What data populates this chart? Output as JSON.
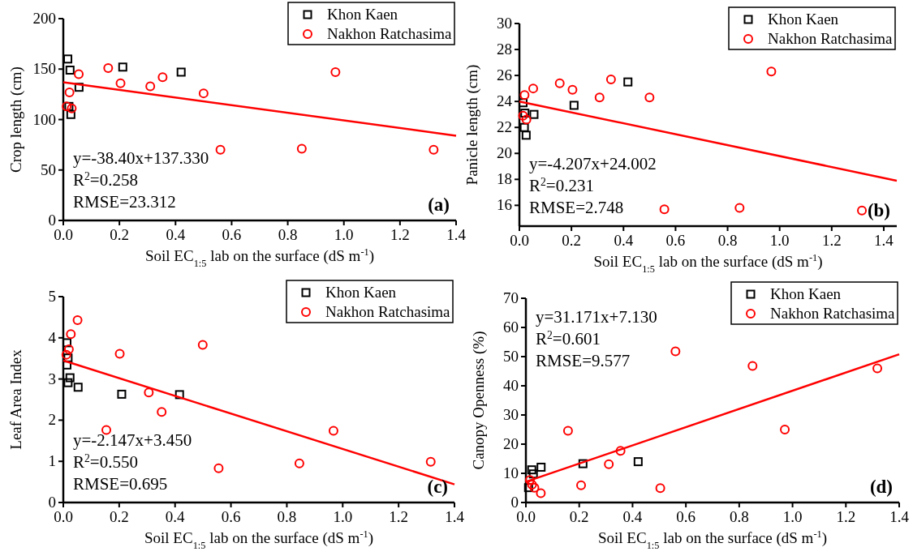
{
  "chart_data": [
    {
      "type": "scatter",
      "ylabel": "Crop length (cm)",
      "xlabel": "Soil EC$_{1:5}$ lab on the surface (dS m$^{-1}$)",
      "xlim": [
        0,
        1.4
      ],
      "xticks": [
        {
          "value": 0,
          "label": "0.0"
        },
        {
          "value": 0.2,
          "label": "0.2"
        },
        {
          "value": 0.4,
          "label": "0.4"
        },
        {
          "value": 0.6,
          "label": "0.6"
        },
        {
          "value": 0.8,
          "label": "0.8"
        },
        {
          "value": 1,
          "label": "1.0"
        },
        {
          "value": 1.2,
          "label": "1.2"
        },
        {
          "value": 1.4,
          "label": "1.4"
        }
      ],
      "ylim": [
        0,
        200
      ],
      "yticks": [
        0,
        50,
        100,
        150,
        200
      ],
      "legend": "top right",
      "grid": false,
      "annotations": [
        "y=-38.40x+137.330",
        "R$^{2}$=0.258",
        "RMSE=23.312",
        "(a)"
      ],
      "series": [
        {
          "name": "Khon Kaen",
          "color": "#000000",
          "marker": "square",
          "x": [
            0.016,
            0.024,
            0.056,
            0.027,
            0.02,
            0.212,
            0.42
          ],
          "values": [
            160,
            149,
            132,
            105,
            113,
            152,
            147
          ]
        },
        {
          "name": "Nakhon Ratchasima",
          "color": "#ff0000",
          "marker": "circle",
          "x": [
            0.16,
            0.055,
            0.022,
            0.012,
            0.03,
            0.204,
            0.31,
            0.354,
            0.5,
            0.56,
            0.85,
            0.97,
            1.32
          ],
          "values": [
            151,
            145,
            127,
            113,
            111,
            136,
            133,
            142,
            126,
            70,
            71,
            147,
            70
          ]
        },
        {
          "type": "line",
          "color": "#ff0000",
          "marker": "none",
          "line_style": "solid",
          "x": [
            0,
            1.4
          ],
          "values": [
            137,
            84
          ]
        }
      ]
    },
    {
      "type": "scatter",
      "ylabel": "Panicle length (cm)",
      "xlabel": "Soil EC$_{1:5}$ lab on the surface (dS m$^{-1}$)",
      "xlim": [
        0,
        1.45
      ],
      "xticks": [
        {
          "value": 0,
          "label": "0.0"
        },
        {
          "value": 0.2,
          "label": "0.2"
        },
        {
          "value": 0.4,
          "label": "0.4"
        },
        {
          "value": 0.6,
          "label": "0.6"
        },
        {
          "value": 0.8,
          "label": "0.8"
        },
        {
          "value": 1,
          "label": "1.0"
        },
        {
          "value": 1.2,
          "label": "1.2"
        },
        {
          "value": 1.4,
          "label": "1.4"
        }
      ],
      "ylim": [
        14.4,
        30
      ],
      "yticks": [
        16,
        18,
        20,
        22,
        24,
        26,
        28,
        30
      ],
      "legend": "top right",
      "grid": false,
      "annotations": [
        "y=-4.207x+24.002",
        "R$^{2}$=0.231",
        "RMSE=2.748",
        "(b)"
      ],
      "series": [
        {
          "name": "Khon Kaen",
          "color": "#000000",
          "marker": "square",
          "x": [
            0.014,
            0.021,
            0.019,
            0.026,
            0.056,
            0.21,
            0.417
          ],
          "values": [
            23.9,
            23.1,
            22.0,
            21.4,
            23.0,
            23.7,
            25.5
          ]
        },
        {
          "name": "Nakhon Ratchasima",
          "color": "#ff0000",
          "marker": "circle",
          "x": [
            0.02,
            0.053,
            0.014,
            0.027,
            0.155,
            0.204,
            0.308,
            0.352,
            0.5,
            0.557,
            0.846,
            0.968,
            1.316
          ],
          "values": [
            24.5,
            25.0,
            22.9,
            22.6,
            25.4,
            24.9,
            24.3,
            25.7,
            24.3,
            15.7,
            15.8,
            26.3,
            15.6
          ]
        },
        {
          "type": "line",
          "color": "#ff0000",
          "marker": "none",
          "line_style": "solid",
          "x": [
            0,
            1.45
          ],
          "values": [
            24.0,
            17.9
          ]
        }
      ]
    },
    {
      "type": "scatter",
      "ylabel": "Leaf Area Index",
      "xlabel": "Soil EC$_{1:5}$ lab on the surface (dS m$^{-1}$)",
      "xlim": [
        0,
        1.4
      ],
      "xticks": [
        {
          "value": 0,
          "label": "0.0"
        },
        {
          "value": 0.2,
          "label": "0.2"
        },
        {
          "value": 0.4,
          "label": "0.4"
        },
        {
          "value": 0.6,
          "label": "0.6"
        },
        {
          "value": 0.8,
          "label": "0.8"
        },
        {
          "value": 1,
          "label": "1.0"
        },
        {
          "value": 1.2,
          "label": "1.2"
        },
        {
          "value": 1.4,
          "label": "1.4"
        }
      ],
      "ylim": [
        0,
        5
      ],
      "yticks": [
        0,
        1,
        2,
        3,
        4,
        5
      ],
      "legend": "top right",
      "grid": false,
      "annotations": [
        "y=-2.147x+3.450",
        "R$^{2}$=0.550",
        "RMSE=0.695",
        "(c)"
      ],
      "series": [
        {
          "name": "Khon Kaen",
          "color": "#000000",
          "marker": "square",
          "x": [
            0.013,
            0.017,
            0.013,
            0.024,
            0.017,
            0.053,
            0.209,
            0.416
          ],
          "values": [
            3.88,
            3.51,
            3.34,
            3.03,
            2.91,
            2.8,
            2.63,
            2.62
          ]
        },
        {
          "name": "Nakhon Ratchasima",
          "color": "#ff0000",
          "marker": "circle",
          "x": [
            0.051,
            0.027,
            0.02,
            0.011,
            0.154,
            0.202,
            0.306,
            0.352,
            0.499,
            0.556,
            0.845,
            0.967,
            1.315
          ],
          "values": [
            4.43,
            4.09,
            3.72,
            3.59,
            1.76,
            3.61,
            2.67,
            2.2,
            3.83,
            0.83,
            0.95,
            1.74,
            0.99
          ]
        },
        {
          "type": "line",
          "color": "#ff0000",
          "marker": "none",
          "line_style": "solid",
          "x": [
            0,
            1.4
          ],
          "values": [
            3.45,
            0.44
          ]
        }
      ]
    },
    {
      "type": "scatter",
      "ylabel": "Canopy Openness (%)",
      "xlabel": "Soil EC$_{1:5}$ lab on the surface (dS m$^{-1}$)",
      "xlim": [
        0,
        1.4
      ],
      "xticks": [
        {
          "value": 0,
          "label": "0.0"
        },
        {
          "value": 0.2,
          "label": "0.2"
        },
        {
          "value": 0.4,
          "label": "0.4"
        },
        {
          "value": 0.6,
          "label": "0.6"
        },
        {
          "value": 0.8,
          "label": "0.8"
        },
        {
          "value": 1,
          "label": "1.0"
        },
        {
          "value": 1.2,
          "label": "1.2"
        },
        {
          "value": 1.4,
          "label": "1.4"
        }
      ],
      "ylim": [
        0,
        70
      ],
      "yticks": [
        0,
        10,
        20,
        30,
        40,
        50,
        60,
        70
      ],
      "legend": "top right",
      "grid": false,
      "annotations": [
        "y=31.171x+7.130",
        "R$^{2}$=0.601",
        "RMSE=9.577",
        "(d)"
      ],
      "series": [
        {
          "name": "Khon Kaen",
          "color": "#000000",
          "marker": "square",
          "x": [
            0.022,
            0.028,
            0.057,
            0.214,
            0.421,
            0.01
          ],
          "values": [
            11.2,
            9.8,
            12.1,
            13.3,
            14.0,
            5.1
          ]
        },
        {
          "name": "Nakhon Ratchasima",
          "color": "#ff0000",
          "marker": "circle",
          "x": [
            0.015,
            0.023,
            0.032,
            0.056,
            0.158,
            0.207,
            0.311,
            0.355,
            0.504,
            0.561,
            0.85,
            0.971,
            1.318
          ],
          "values": [
            7.7,
            6.1,
            5.1,
            3.2,
            24.6,
            5.9,
            13.1,
            17.7,
            4.9,
            51.8,
            46.8,
            25.0,
            46.0
          ]
        },
        {
          "type": "line",
          "color": "#ff0000",
          "marker": "none",
          "line_style": "solid",
          "x": [
            0,
            1.4
          ],
          "values": [
            7.1,
            50.8
          ]
        }
      ]
    }
  ]
}
